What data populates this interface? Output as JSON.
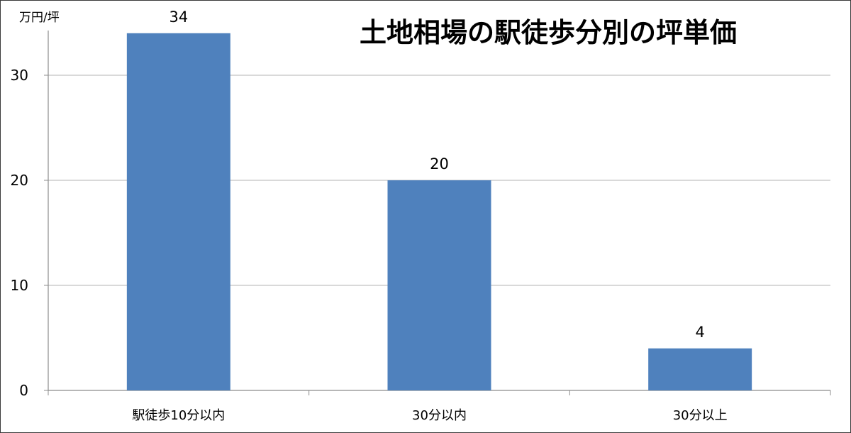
{
  "chart_data": {
    "type": "bar",
    "title": "土地相場の駅徒歩分別の坪単価",
    "ylabel": "万円/坪",
    "xlabel": "",
    "categories": [
      "駅徒歩10分以内",
      "30分以内",
      "30分以上"
    ],
    "values": [
      34,
      20,
      4
    ],
    "data_labels": [
      "34",
      "20",
      "4"
    ],
    "yticks": [
      0,
      10,
      20,
      30
    ],
    "ylim": [
      0,
      30
    ],
    "grid": true,
    "legend": "none",
    "bar_color": "#4f81bd",
    "grid_color": "#b3b3b3",
    "axis_color": "#8c8c8c"
  }
}
